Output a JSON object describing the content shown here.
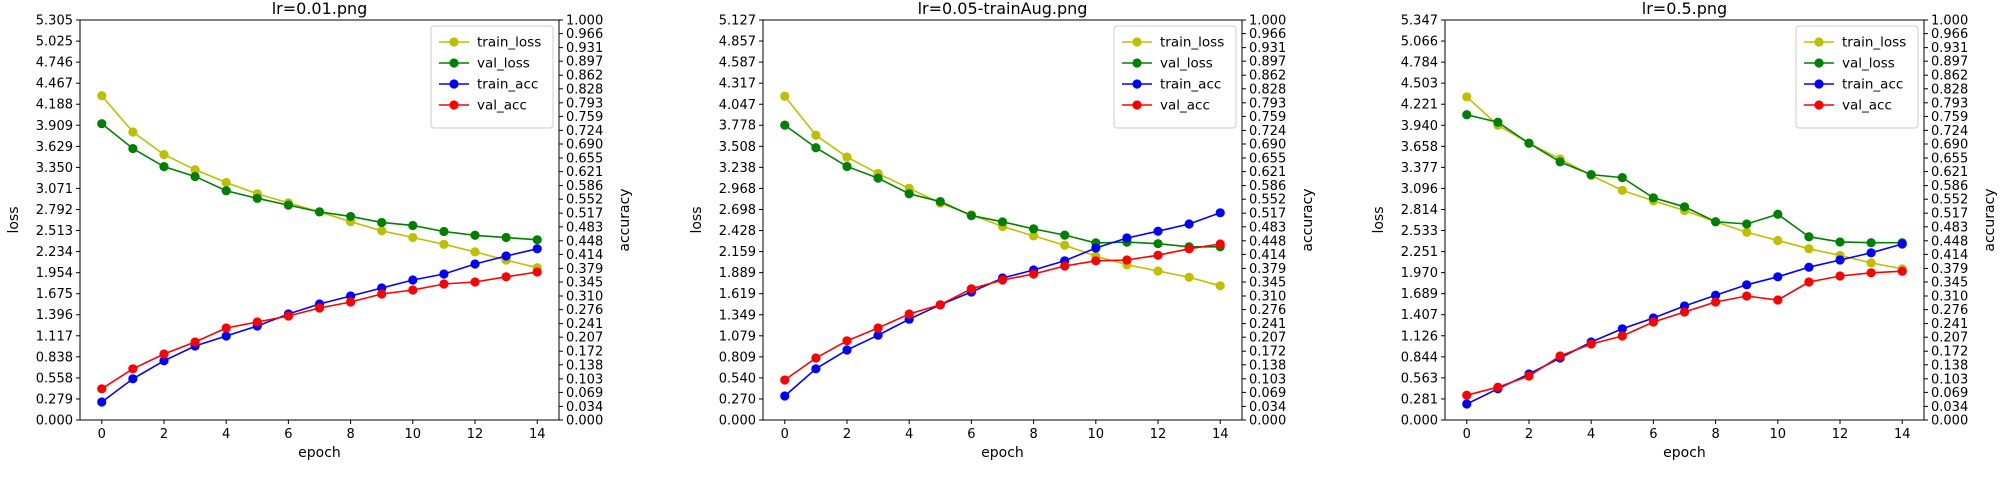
{
  "colors": {
    "train_loss": "#bfbf00",
    "val_loss": "#008000",
    "train_acc": "#0000ff",
    "val_acc": "#ff0000"
  },
  "legend": {
    "placement": "upper right",
    "entries": [
      "train_loss",
      "val_loss",
      "train_acc",
      "val_acc"
    ]
  },
  "chart_data": [
    {
      "type": "line",
      "title": "lr=0.01.png",
      "xlabel": "epoch",
      "ylabel": "loss",
      "ylabel2": "accuracy",
      "x": [
        0,
        1,
        2,
        3,
        4,
        5,
        6,
        7,
        8,
        9,
        10,
        11,
        12,
        13,
        14
      ],
      "xticks": [
        "0",
        "2",
        "4",
        "6",
        "8",
        "10",
        "12",
        "14"
      ],
      "xlim": [
        -0.7,
        14.7
      ],
      "ylim": [
        0,
        5.305
      ],
      "y2lim": [
        0,
        1.0
      ],
      "yticks": [
        "0.000",
        "0.279",
        "0.558",
        "0.838",
        "1.117",
        "1.396",
        "1.675",
        "1.954",
        "2.234",
        "2.513",
        "2.792",
        "3.071",
        "3.350",
        "3.629",
        "3.909",
        "4.188",
        "4.467",
        "4.746",
        "5.025",
        "5.305"
      ],
      "y2ticks": [
        "0.000",
        "0.034",
        "0.069",
        "0.103",
        "0.138",
        "0.172",
        "0.207",
        "0.241",
        "0.276",
        "0.310",
        "0.345",
        "0.379",
        "0.414",
        "0.448",
        "0.483",
        "0.517",
        "0.552",
        "0.586",
        "0.621",
        "0.655",
        "0.690",
        "0.724",
        "0.759",
        "0.793",
        "0.828",
        "0.862",
        "0.897",
        "0.931",
        "0.966",
        "1.000"
      ],
      "series": [
        {
          "name": "train_loss",
          "axis": "left",
          "values": [
            4.3,
            3.82,
            3.52,
            3.32,
            3.15,
            3.0,
            2.88,
            2.76,
            2.63,
            2.51,
            2.42,
            2.33,
            2.23,
            2.12,
            2.02
          ]
        },
        {
          "name": "val_loss",
          "axis": "left",
          "values": [
            3.93,
            3.6,
            3.36,
            3.23,
            3.04,
            2.94,
            2.85,
            2.76,
            2.7,
            2.62,
            2.58,
            2.5,
            2.45,
            2.42,
            2.39
          ]
        },
        {
          "name": "train_acc",
          "axis": "right",
          "values": [
            0.045,
            0.103,
            0.148,
            0.185,
            0.21,
            0.235,
            0.265,
            0.29,
            0.31,
            0.33,
            0.35,
            0.365,
            0.39,
            0.41,
            0.428
          ]
        },
        {
          "name": "val_acc",
          "axis": "right",
          "values": [
            0.078,
            0.128,
            0.165,
            0.195,
            0.23,
            0.245,
            0.26,
            0.28,
            0.295,
            0.315,
            0.325,
            0.34,
            0.345,
            0.358,
            0.37
          ]
        }
      ]
    },
    {
      "type": "line",
      "title": "lr=0.05-trainAug.png",
      "xlabel": "epoch",
      "ylabel": "loss",
      "ylabel2": "accuracy",
      "x": [
        0,
        1,
        2,
        3,
        4,
        5,
        6,
        7,
        8,
        9,
        10,
        11,
        12,
        13,
        14
      ],
      "xticks": [
        "0",
        "2",
        "4",
        "6",
        "8",
        "10",
        "12",
        "14"
      ],
      "xlim": [
        -0.7,
        14.7
      ],
      "ylim": [
        0,
        5.127
      ],
      "y2lim": [
        0,
        1.0
      ],
      "yticks": [
        "0.000",
        "0.270",
        "0.540",
        "0.809",
        "1.079",
        "1.349",
        "1.619",
        "1.889",
        "2.159",
        "2.428",
        "2.698",
        "2.968",
        "3.238",
        "3.508",
        "3.778",
        "4.047",
        "4.317",
        "4.587",
        "4.857",
        "5.127"
      ],
      "y2ticks": [
        "0.000",
        "0.034",
        "0.069",
        "0.103",
        "0.138",
        "0.172",
        "0.207",
        "0.241",
        "0.276",
        "0.310",
        "0.345",
        "0.379",
        "0.414",
        "0.448",
        "0.483",
        "0.517",
        "0.552",
        "0.586",
        "0.621",
        "0.655",
        "0.690",
        "0.724",
        "0.759",
        "0.793",
        "0.828",
        "0.862",
        "0.897",
        "0.931",
        "0.966",
        "1.000"
      ],
      "series": [
        {
          "name": "train_loss",
          "axis": "left",
          "values": [
            4.15,
            3.65,
            3.37,
            3.16,
            2.97,
            2.78,
            2.63,
            2.48,
            2.36,
            2.24,
            2.1,
            1.99,
            1.91,
            1.83,
            1.72
          ]
        },
        {
          "name": "val_loss",
          "axis": "left",
          "values": [
            3.78,
            3.49,
            3.25,
            3.1,
            2.9,
            2.8,
            2.62,
            2.54,
            2.45,
            2.37,
            2.27,
            2.28,
            2.26,
            2.22,
            2.22
          ]
        },
        {
          "name": "train_acc",
          "axis": "right",
          "values": [
            0.06,
            0.128,
            0.175,
            0.212,
            0.252,
            0.288,
            0.32,
            0.355,
            0.375,
            0.398,
            0.43,
            0.455,
            0.472,
            0.49,
            0.518
          ]
        },
        {
          "name": "val_acc",
          "axis": "right",
          "values": [
            0.1,
            0.155,
            0.198,
            0.23,
            0.265,
            0.288,
            0.328,
            0.35,
            0.365,
            0.385,
            0.398,
            0.4,
            0.412,
            0.428,
            0.44
          ]
        }
      ]
    },
    {
      "type": "line",
      "title": "lr=0.5.png",
      "xlabel": "epoch",
      "ylabel": "loss",
      "ylabel2": "accuracy",
      "x": [
        0,
        1,
        2,
        3,
        4,
        5,
        6,
        7,
        8,
        9,
        10,
        11,
        12,
        13,
        14
      ],
      "xticks": [
        "0",
        "2",
        "4",
        "6",
        "8",
        "10",
        "12",
        "14"
      ],
      "xlim": [
        -0.7,
        14.7
      ],
      "ylim": [
        0,
        5.347
      ],
      "y2lim": [
        0,
        1.0
      ],
      "yticks": [
        "0.000",
        "0.281",
        "0.563",
        "0.844",
        "1.126",
        "1.407",
        "1.689",
        "1.970",
        "2.251",
        "2.533",
        "2.814",
        "3.096",
        "3.377",
        "3.658",
        "3.940",
        "4.221",
        "4.503",
        "4.784",
        "5.066",
        "5.347"
      ],
      "y2ticks": [
        "0.000",
        "0.034",
        "0.069",
        "0.103",
        "0.138",
        "0.172",
        "0.207",
        "0.241",
        "0.276",
        "0.310",
        "0.345",
        "0.379",
        "0.414",
        "0.448",
        "0.483",
        "0.517",
        "0.552",
        "0.586",
        "0.621",
        "0.655",
        "0.690",
        "0.724",
        "0.759",
        "0.793",
        "0.828",
        "0.862",
        "0.897",
        "0.931",
        "0.966",
        "1.000"
      ],
      "series": [
        {
          "name": "train_loss",
          "axis": "left",
          "values": [
            4.32,
            3.94,
            3.7,
            3.49,
            3.27,
            3.07,
            2.93,
            2.8,
            2.65,
            2.51,
            2.4,
            2.29,
            2.2,
            2.1,
            2.02
          ]
        },
        {
          "name": "val_loss",
          "axis": "left",
          "values": [
            4.08,
            3.98,
            3.7,
            3.45,
            3.28,
            3.24,
            2.97,
            2.85,
            2.65,
            2.62,
            2.75,
            2.45,
            2.38,
            2.37,
            2.37
          ]
        },
        {
          "name": "train_acc",
          "axis": "right",
          "values": [
            0.04,
            0.078,
            0.115,
            0.155,
            0.195,
            0.228,
            0.255,
            0.285,
            0.312,
            0.338,
            0.358,
            0.382,
            0.4,
            0.418,
            0.44
          ]
        },
        {
          "name": "val_acc",
          "axis": "right",
          "values": [
            0.062,
            0.082,
            0.11,
            0.16,
            0.19,
            0.21,
            0.245,
            0.27,
            0.295,
            0.31,
            0.3,
            0.345,
            0.36,
            0.368,
            0.372
          ]
        }
      ]
    }
  ]
}
